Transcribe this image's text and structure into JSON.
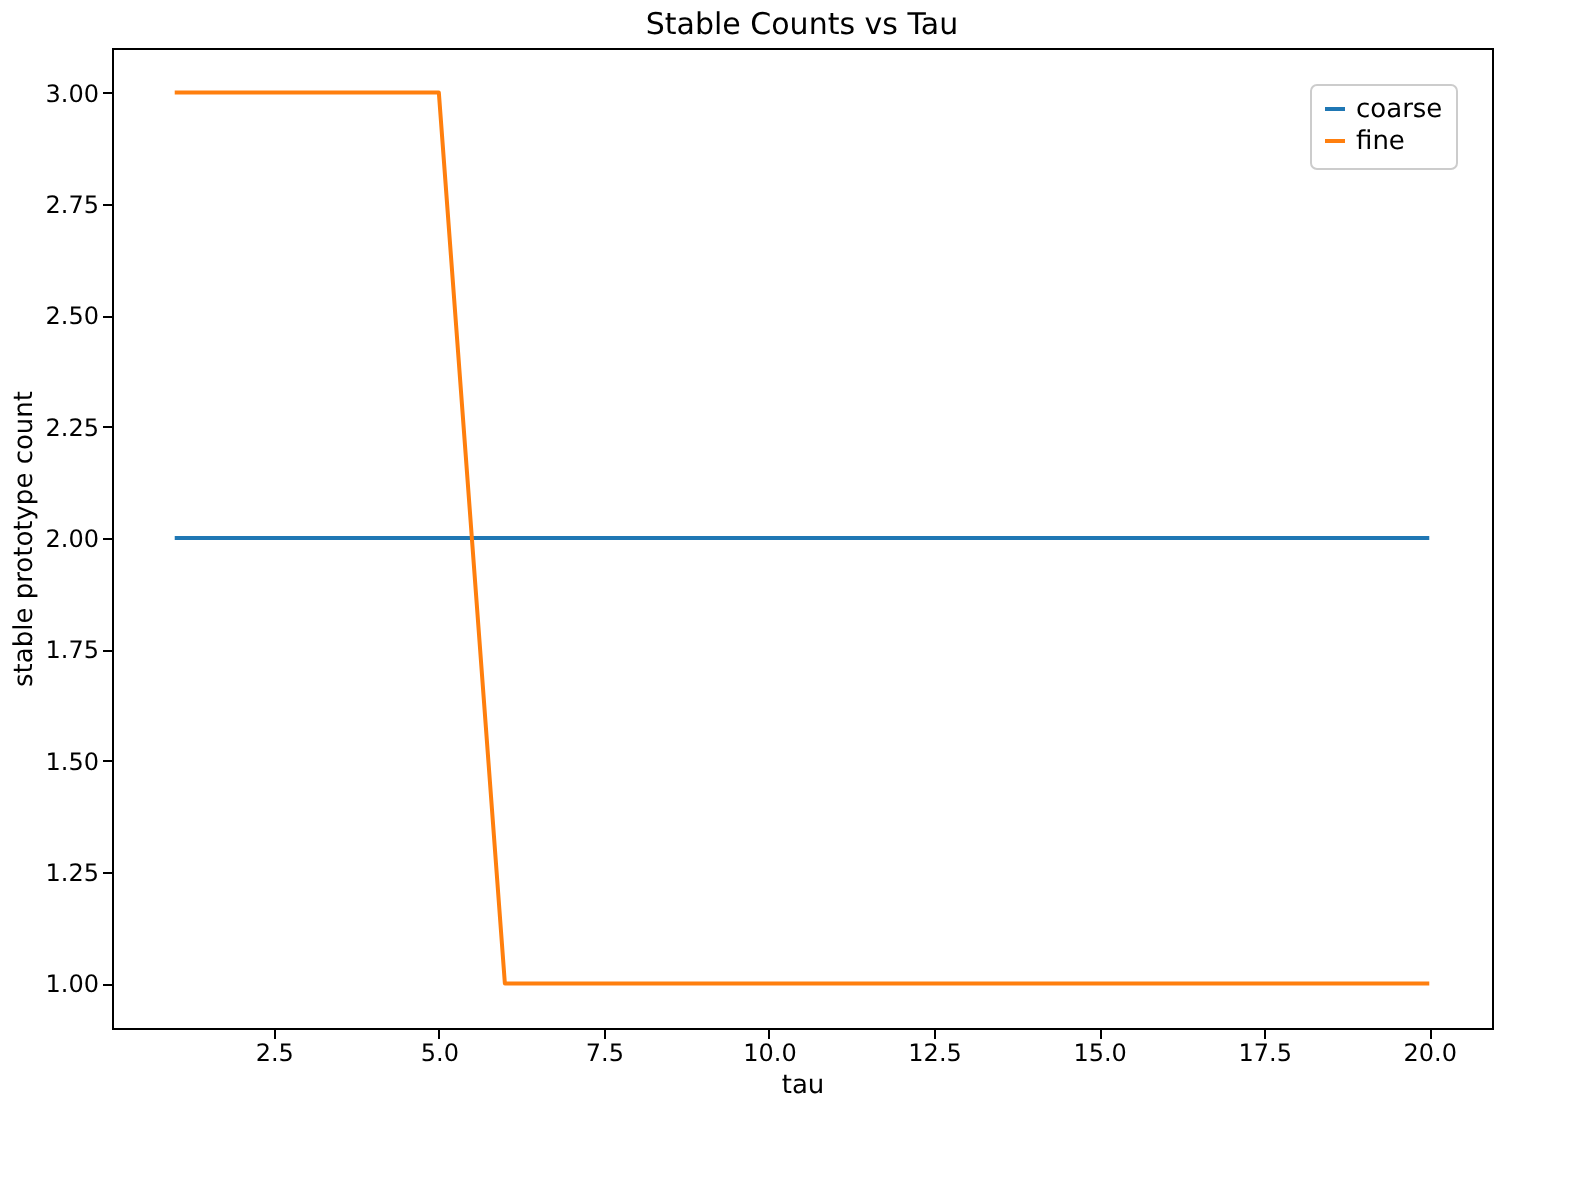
{
  "chart_data": {
    "type": "line",
    "title": "Stable Counts vs Tau",
    "xlabel": "tau",
    "ylabel": "stable prototype count",
    "x": [
      1,
      2,
      3,
      4,
      5,
      6,
      7,
      8,
      9,
      10,
      11,
      12,
      13,
      14,
      15,
      16,
      17,
      18,
      19,
      20
    ],
    "series": [
      {
        "name": "coarse",
        "color": "#1f77b4",
        "values": [
          2,
          2,
          2,
          2,
          2,
          2,
          2,
          2,
          2,
          2,
          2,
          2,
          2,
          2,
          2,
          2,
          2,
          2,
          2,
          2
        ]
      },
      {
        "name": "fine",
        "color": "#ff7f0e",
        "values": [
          3,
          3,
          3,
          3,
          3,
          1,
          1,
          1,
          1,
          1,
          1,
          1,
          1,
          1,
          1,
          1,
          1,
          1,
          1,
          1
        ]
      }
    ],
    "xlim": [
      0.05,
      20.95
    ],
    "ylim": [
      0.9,
      3.1
    ],
    "xticks": [
      {
        "value": 2.5,
        "label": "2.5"
      },
      {
        "value": 5,
        "label": "5.0"
      },
      {
        "value": 7.5,
        "label": "7.5"
      },
      {
        "value": 10,
        "label": "10.0"
      },
      {
        "value": 12.5,
        "label": "12.5"
      },
      {
        "value": 15,
        "label": "15.0"
      },
      {
        "value": 17.5,
        "label": "17.5"
      },
      {
        "value": 20,
        "label": "20.0"
      }
    ],
    "yticks": [
      {
        "value": 1,
        "label": "1.00"
      },
      {
        "value": 1.25,
        "label": "1.25"
      },
      {
        "value": 1.5,
        "label": "1.50"
      },
      {
        "value": 1.75,
        "label": "1.75"
      },
      {
        "value": 2,
        "label": "2.00"
      },
      {
        "value": 2.25,
        "label": "2.25"
      },
      {
        "value": 2.5,
        "label": "2.50"
      },
      {
        "value": 2.75,
        "label": "2.75"
      },
      {
        "value": 3,
        "label": "3.00"
      }
    ],
    "legend": "top right"
  }
}
